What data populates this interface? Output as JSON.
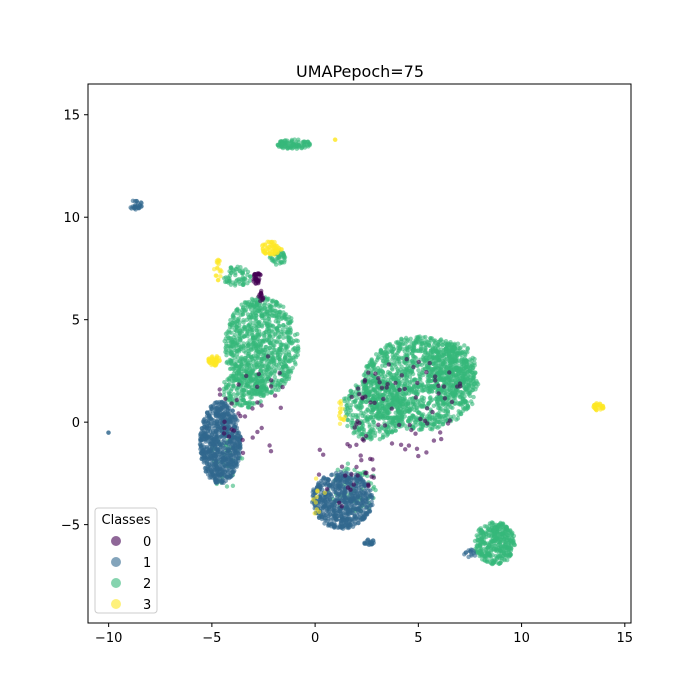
{
  "chart_data": {
    "type": "scatter",
    "title": "UMAPepoch=75",
    "xlabel": "",
    "ylabel": "",
    "xlim": [
      -11.0,
      15.3
    ],
    "ylim": [
      -9.8,
      16.5
    ],
    "xticks": [
      -10,
      -5,
      0,
      5,
      10,
      15
    ],
    "yticks": [
      -5,
      0,
      5,
      10,
      15
    ],
    "xtick_labels": [
      "−10",
      "−5",
      "0",
      "5",
      "10",
      "15"
    ],
    "ytick_labels": [
      "−5",
      "0",
      "5",
      "10",
      "15"
    ],
    "grid": false,
    "legend": {
      "title": "Classes",
      "placement": "lower-left",
      "entries": [
        {
          "label": "0",
          "color": "#440154"
        },
        {
          "label": "1",
          "color": "#31688e"
        },
        {
          "label": "2",
          "color": "#35b779"
        },
        {
          "label": "3",
          "color": "#fde725"
        }
      ]
    },
    "series": [
      {
        "class": "2",
        "color": "#35b779",
        "clusters": [
          {
            "cx": -1.0,
            "cy": 13.55,
            "rx": 0.85,
            "ry": 0.25,
            "n": 90
          },
          {
            "cx": -2.6,
            "cy": 3.7,
            "rx": 1.8,
            "ry": 2.4,
            "n": 900
          },
          {
            "cx": -3.4,
            "cy": 1.6,
            "rx": 1.1,
            "ry": 0.9,
            "n": 180
          },
          {
            "cx": -3.8,
            "cy": 7.1,
            "rx": 0.7,
            "ry": 0.5,
            "n": 60
          },
          {
            "cx": -1.8,
            "cy": 8.0,
            "rx": 0.4,
            "ry": 0.4,
            "n": 40
          },
          {
            "cx": 5.1,
            "cy": 1.9,
            "rx": 2.8,
            "ry": 2.3,
            "n": 1300
          },
          {
            "cx": 2.8,
            "cy": 0.6,
            "rx": 1.5,
            "ry": 1.5,
            "n": 350
          },
          {
            "cx": 6.6,
            "cy": 2.6,
            "rx": 1.2,
            "ry": 1.4,
            "n": 260
          },
          {
            "cx": 8.7,
            "cy": -5.9,
            "rx": 1.0,
            "ry": 1.05,
            "n": 360
          },
          {
            "cx": -4.3,
            "cy": -1.8,
            "rx": 0.8,
            "ry": 1.5,
            "n": 45
          },
          {
            "cx": 1.8,
            "cy": -3.3,
            "rx": 1.2,
            "ry": 1.3,
            "n": 60
          }
        ]
      },
      {
        "class": "1",
        "color": "#31688e",
        "clusters": [
          {
            "cx": -8.7,
            "cy": 10.6,
            "rx": 0.35,
            "ry": 0.22,
            "n": 28
          },
          {
            "cx": -4.6,
            "cy": -1.0,
            "rx": 1.0,
            "ry": 2.0,
            "n": 750
          },
          {
            "cx": 1.3,
            "cy": -3.8,
            "rx": 1.5,
            "ry": 1.4,
            "n": 650
          },
          {
            "cx": 2.6,
            "cy": -5.85,
            "rx": 0.25,
            "ry": 0.15,
            "n": 24
          },
          {
            "cx": 7.5,
            "cy": -6.4,
            "rx": 0.3,
            "ry": 0.2,
            "n": 14
          },
          {
            "cx": -10.0,
            "cy": -0.5,
            "rx": 0.03,
            "ry": 0.03,
            "n": 2
          }
        ]
      },
      {
        "class": "0",
        "color": "#440154",
        "clusters": [
          {
            "cx": -2.8,
            "cy": 7.0,
            "rx": 0.2,
            "ry": 0.3,
            "n": 35
          },
          {
            "cx": -2.6,
            "cy": 6.2,
            "rx": 0.15,
            "ry": 0.35,
            "n": 14
          },
          {
            "cx": 4.5,
            "cy": 0.5,
            "rx": 3.0,
            "ry": 2.6,
            "n": 70
          },
          {
            "cx": -3.2,
            "cy": 1.0,
            "rx": 1.8,
            "ry": 3.0,
            "n": 35
          },
          {
            "cx": 1.5,
            "cy": -2.0,
            "rx": 1.5,
            "ry": 2.2,
            "n": 30
          }
        ]
      },
      {
        "class": "3",
        "color": "#fde725",
        "clusters": [
          {
            "cx": -2.1,
            "cy": 8.5,
            "rx": 0.5,
            "ry": 0.35,
            "n": 60
          },
          {
            "cx": -4.9,
            "cy": 3.0,
            "rx": 0.3,
            "ry": 0.25,
            "n": 45
          },
          {
            "cx": -4.7,
            "cy": 7.4,
            "rx": 0.2,
            "ry": 0.6,
            "n": 18
          },
          {
            "cx": 13.7,
            "cy": 0.75,
            "rx": 0.28,
            "ry": 0.18,
            "n": 35
          },
          {
            "cx": 1.3,
            "cy": 0.5,
            "rx": 0.2,
            "ry": 0.7,
            "n": 14
          },
          {
            "cx": 1.0,
            "cy": 13.8,
            "rx": 0.04,
            "ry": 0.04,
            "n": 2
          },
          {
            "cx": 0.0,
            "cy": -3.5,
            "rx": 0.5,
            "ry": 1.0,
            "n": 10
          }
        ]
      }
    ]
  }
}
